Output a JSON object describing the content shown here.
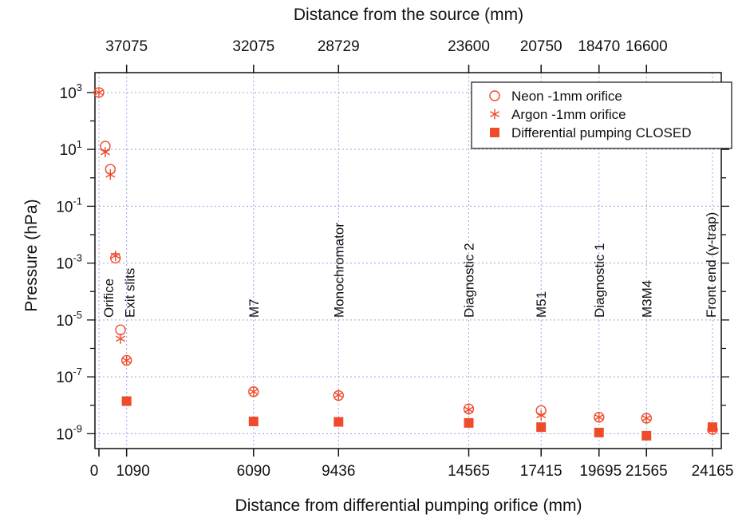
{
  "chart_data": {
    "type": "scatter",
    "title": "",
    "xlabel": "Distance from differential pumping orifice (mm)",
    "x2label": "Distance from the source (mm)",
    "ylabel": "Pressure (hPa)",
    "ylim": [
      3e-10,
      5000
    ],
    "yscale": "log",
    "grid": true,
    "legend_position": "top-right",
    "color": "#ee4b2b",
    "x_ticks": [
      {
        "value": 0,
        "label": "0"
      },
      {
        "value": 1090,
        "label": "1090"
      },
      {
        "value": 6090,
        "label": "6090"
      },
      {
        "value": 9436,
        "label": "9436"
      },
      {
        "value": 14565,
        "label": "14565"
      },
      {
        "value": 17415,
        "label": "17415"
      },
      {
        "value": 19695,
        "label": "19695"
      },
      {
        "value": 21565,
        "label": "21565"
      },
      {
        "value": 24165,
        "label": "24165"
      }
    ],
    "x2_ticks": [
      {
        "value": 0,
        "label": "37075"
      },
      {
        "value": 5000,
        "label": "32075"
      },
      {
        "value": 8346,
        "label": "28729"
      },
      {
        "value": 13475,
        "label": "23600"
      },
      {
        "value": 16325,
        "label": "20750"
      },
      {
        "value": 18605,
        "label": "18470"
      },
      {
        "value": 20475,
        "label": "16600"
      }
    ],
    "y_ticks": [
      {
        "value": 1000.0,
        "base": "10",
        "exp": "3"
      },
      {
        "value": 10.0,
        "base": "10",
        "exp": "1"
      },
      {
        "value": 0.1,
        "base": "10",
        "exp": "-1"
      },
      {
        "value": 0.001,
        "base": "10",
        "exp": "-3"
      },
      {
        "value": 1e-05,
        "base": "10",
        "exp": "-5"
      },
      {
        "value": 1e-07,
        "base": "10",
        "exp": "-7"
      },
      {
        "value": 1e-09,
        "base": "10",
        "exp": "-9"
      }
    ],
    "annotations": [
      {
        "x": 0,
        "text": "Orifice"
      },
      {
        "x": 1090,
        "text": "Exit slits"
      },
      {
        "x": 6090,
        "text": "M7"
      },
      {
        "x": 9436,
        "text": "Monochromator"
      },
      {
        "x": 14565,
        "text": "Diagnostic 2"
      },
      {
        "x": 17415,
        "text": "M51"
      },
      {
        "x": 19695,
        "text": "Diagnostic 1"
      },
      {
        "x": 21565,
        "text": "M3M4"
      },
      {
        "x": 24165,
        "text": "Front end (γ-trap)"
      }
    ],
    "series": [
      {
        "name": "Neon -1mm orifice",
        "marker": "circle",
        "points": [
          {
            "x": 0,
            "y": 1000
          },
          {
            "x": 250,
            "y": 13
          },
          {
            "x": 450,
            "y": 2
          },
          {
            "x": 650,
            "y": 0.0015
          },
          {
            "x": 850,
            "y": 4.5e-06
          },
          {
            "x": 1090,
            "y": 3.8e-07
          },
          {
            "x": 6090,
            "y": 3e-08
          },
          {
            "x": 9436,
            "y": 2.2e-08
          },
          {
            "x": 14565,
            "y": 7.5e-09
          },
          {
            "x": 17415,
            "y": 6.5e-09
          },
          {
            "x": 19695,
            "y": 3.8e-09
          },
          {
            "x": 21565,
            "y": 3.5e-09
          },
          {
            "x": 24165,
            "y": 1.4e-09
          }
        ]
      },
      {
        "name": "Argon -1mm orifice",
        "marker": "asterisk",
        "points": [
          {
            "x": 0,
            "y": 1000
          },
          {
            "x": 250,
            "y": 8
          },
          {
            "x": 450,
            "y": 1.3
          },
          {
            "x": 650,
            "y": 0.0018
          },
          {
            "x": 850,
            "y": 2.2e-06
          },
          {
            "x": 1090,
            "y": 3.8e-07
          },
          {
            "x": 6090,
            "y": 3e-08
          },
          {
            "x": 9436,
            "y": 2.3e-08
          },
          {
            "x": 14565,
            "y": 7e-09
          },
          {
            "x": 17415,
            "y": 4.5e-09
          },
          {
            "x": 19695,
            "y": 3.8e-09
          },
          {
            "x": 21565,
            "y": 3.5e-09
          },
          {
            "x": 24165,
            "y": 1.4e-09
          }
        ]
      },
      {
        "name": "Differential pumping CLOSED",
        "marker": "square",
        "points": [
          {
            "x": 1090,
            "y": 1.4e-08
          },
          {
            "x": 6090,
            "y": 2.7e-09
          },
          {
            "x": 9436,
            "y": 2.6e-09
          },
          {
            "x": 14565,
            "y": 2.4e-09
          },
          {
            "x": 17415,
            "y": 1.7e-09
          },
          {
            "x": 19695,
            "y": 1.1e-09
          },
          {
            "x": 21565,
            "y": 8.5e-10
          },
          {
            "x": 24165,
            "y": 1.7e-09
          }
        ]
      }
    ]
  }
}
